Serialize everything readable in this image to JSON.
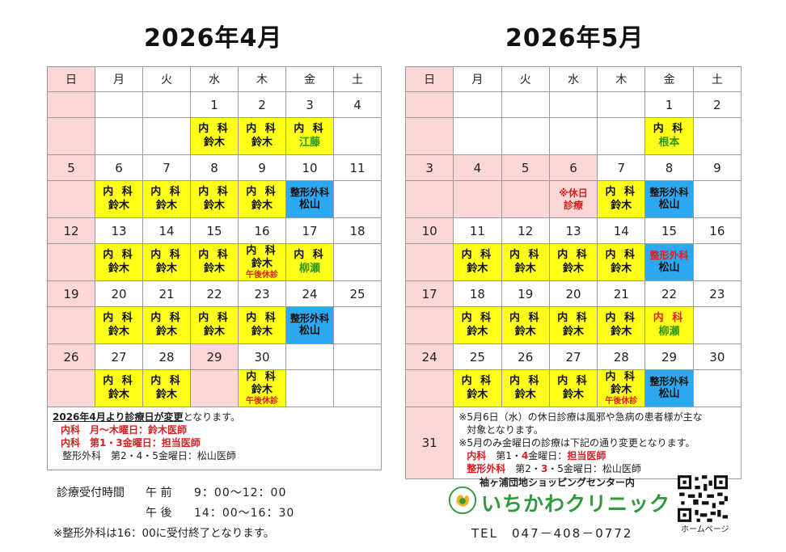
{
  "april": {
    "title": "2026年4月",
    "weekdays": [
      "日",
      "月",
      "火",
      "水",
      "木",
      "金",
      "土"
    ],
    "rows": [
      {
        "nums": [
          "",
          "",
          "",
          "1",
          "2",
          "3",
          "4"
        ],
        "notes": [
          {
            "type": "sun"
          },
          {
            "type": "empty"
          },
          {
            "type": "empty"
          },
          {
            "type": "yel",
            "l1": "内 科",
            "l2": "鈴木"
          },
          {
            "type": "yel",
            "l1": "内 科",
            "l2": "鈴木"
          },
          {
            "type": "yel",
            "l1": "内 科",
            "l2": "江藤",
            "green2": true
          },
          {
            "type": "empty"
          }
        ]
      },
      {
        "nums": [
          "5",
          "6",
          "7",
          "8",
          "9",
          "10",
          "11"
        ],
        "notes": [
          {
            "type": "sun"
          },
          {
            "type": "yel",
            "l1": "内 科",
            "l2": "鈴木"
          },
          {
            "type": "yel",
            "l1": "内 科",
            "l2": "鈴木"
          },
          {
            "type": "yel",
            "l1": "内 科",
            "l2": "鈴木"
          },
          {
            "type": "yel",
            "l1": "内 科",
            "l2": "鈴木"
          },
          {
            "type": "blu",
            "l1": "整形外科",
            "l2": "松山"
          },
          {
            "type": "empty"
          }
        ]
      },
      {
        "nums": [
          "12",
          "13",
          "14",
          "15",
          "16",
          "17",
          "18"
        ],
        "notes": [
          {
            "type": "sun"
          },
          {
            "type": "yel",
            "l1": "内 科",
            "l2": "鈴木"
          },
          {
            "type": "yel",
            "l1": "内 科",
            "l2": "鈴木"
          },
          {
            "type": "yel",
            "l1": "内 科",
            "l2": "鈴木"
          },
          {
            "type": "yel",
            "l1": "内 科",
            "l2": "鈴木",
            "l3": "午後休診"
          },
          {
            "type": "yel",
            "l1": "内 科",
            "l2": "柳瀬",
            "green2": true
          },
          {
            "type": "empty"
          }
        ]
      },
      {
        "nums": [
          "19",
          "20",
          "21",
          "22",
          "23",
          "24",
          "25"
        ],
        "notes": [
          {
            "type": "sun"
          },
          {
            "type": "yel",
            "l1": "内 科",
            "l2": "鈴木"
          },
          {
            "type": "yel",
            "l1": "内 科",
            "l2": "鈴木"
          },
          {
            "type": "yel",
            "l1": "内 科",
            "l2": "鈴木"
          },
          {
            "type": "yel",
            "l1": "内 科",
            "l2": "鈴木"
          },
          {
            "type": "blu",
            "l1": "整形外科",
            "l2": "松山"
          },
          {
            "type": "empty"
          }
        ]
      },
      {
        "nums": [
          "26",
          "27",
          "28",
          "29",
          "30",
          "",
          ""
        ],
        "holidayIdx": 3,
        "notes": [
          {
            "type": "sun"
          },
          {
            "type": "yel",
            "l1": "内 科",
            "l2": "鈴木"
          },
          {
            "type": "yel",
            "l1": "内 科",
            "l2": "鈴木"
          },
          {
            "type": "hol"
          },
          {
            "type": "yel",
            "l1": "内 科",
            "l2": "鈴木",
            "l3": "午後休診"
          },
          {
            "type": "empty"
          },
          {
            "type": "empty"
          }
        ]
      }
    ],
    "info": {
      "line1_u": "2026年4月より診療日が変更",
      "line1_rest": "となります。",
      "line2": "内科　月～木曜日：鈴木医師",
      "line3": "内科　第1・3金曜日：担当医師",
      "line4": "整形外科　第2・4・5金曜日：松山医師"
    }
  },
  "may": {
    "title": "2026年5月",
    "weekdays": [
      "日",
      "月",
      "火",
      "水",
      "木",
      "金",
      "土"
    ],
    "rows": [
      {
        "nums": [
          "",
          "",
          "",
          "",
          "",
          "1",
          "2"
        ],
        "notes": [
          {
            "type": "sun"
          },
          {
            "type": "empty"
          },
          {
            "type": "empty"
          },
          {
            "type": "empty"
          },
          {
            "type": "empty"
          },
          {
            "type": "yel",
            "l1": "内 科",
            "l2": "根本",
            "green2": true
          },
          {
            "type": "empty"
          }
        ]
      },
      {
        "nums": [
          "3",
          "4",
          "5",
          "6",
          "7",
          "8",
          "9"
        ],
        "allHoliday": [
          0,
          1,
          2,
          3
        ],
        "notes": [
          {
            "type": "sun"
          },
          {
            "type": "hol"
          },
          {
            "type": "hol"
          },
          {
            "type": "hol",
            "special": [
              "※休日",
              "診療"
            ]
          },
          {
            "type": "yel",
            "l1": "内 科",
            "l2": "鈴木"
          },
          {
            "type": "blu",
            "l1": "整形外科",
            "l2": "松山"
          },
          {
            "type": "empty"
          }
        ]
      },
      {
        "nums": [
          "10",
          "11",
          "12",
          "13",
          "14",
          "15",
          "16"
        ],
        "notes": [
          {
            "type": "sun"
          },
          {
            "type": "yel",
            "l1": "内 科",
            "l2": "鈴木"
          },
          {
            "type": "yel",
            "l1": "内 科",
            "l2": "鈴木"
          },
          {
            "type": "yel",
            "l1": "内 科",
            "l2": "鈴木"
          },
          {
            "type": "yel",
            "l1": "内 科",
            "l2": "鈴木"
          },
          {
            "type": "blu",
            "l1": "整形外科",
            "l2": "松山",
            "red1": true
          },
          {
            "type": "empty"
          }
        ]
      },
      {
        "nums": [
          "17",
          "18",
          "19",
          "20",
          "21",
          "22",
          "23"
        ],
        "notes": [
          {
            "type": "sun"
          },
          {
            "type": "yel",
            "l1": "内 科",
            "l2": "鈴木"
          },
          {
            "type": "yel",
            "l1": "内 科",
            "l2": "鈴木"
          },
          {
            "type": "yel",
            "l1": "内 科",
            "l2": "鈴木"
          },
          {
            "type": "yel",
            "l1": "内 科",
            "l2": "鈴木"
          },
          {
            "type": "yel",
            "l1": "内 科",
            "l2": "柳瀬",
            "red1": true,
            "green2": true
          },
          {
            "type": "empty"
          }
        ]
      },
      {
        "nums": [
          "24",
          "25",
          "26",
          "27",
          "28",
          "29",
          "30"
        ],
        "notes": [
          {
            "type": "sun"
          },
          {
            "type": "yel",
            "l1": "内 科",
            "l2": "鈴木"
          },
          {
            "type": "yel",
            "l1": "内 科",
            "l2": "鈴木"
          },
          {
            "type": "yel",
            "l1": "内 科",
            "l2": "鈴木"
          },
          {
            "type": "yel",
            "l1": "内 科",
            "l2": "鈴木",
            "l3": "午後休診"
          },
          {
            "type": "blu",
            "l1": "整形外科",
            "l2": "松山"
          },
          {
            "type": "empty"
          }
        ]
      }
    ],
    "last_day": "31",
    "info": {
      "line1": "※5月6日（水）の休日診療は風邪や急病の患者様が主な",
      "line2": "対象となります。",
      "line3": "※5月のみ金曜日の診療は下記の通り変更となります。",
      "line4_red": "内科",
      "line4_rest": "　第1・",
      "line4_num": "4",
      "line4_end": "金曜日：",
      "line4_doc": "担当医師",
      "line5_red": "整形外科",
      "line5_rest": "　第2・",
      "line5_num": "3",
      "line5_end": "・5金曜日：松山医師"
    }
  },
  "footer": {
    "hours_label": "診療受付時間",
    "am_label": "午 前",
    "am_time": "9：00～12：00",
    "pm_label": "午 後",
    "pm_time": "14：00～16：30",
    "note": "※整形外科は16：00に受付終了となります。",
    "clinic_sub": "袖ヶ浦団地ショッピングセンター内",
    "clinic_name": "いちかわクリニック",
    "tel": "TEL　047－408－0772",
    "qr_label": "ホームページ"
  },
  "colors": {
    "sunday_bg": "#fbd7d8",
    "internal_bg": "#ffff1a",
    "ortho_bg": "#2ba8f0",
    "accent_red": "#e0201f",
    "accent_green": "#2a9a1e",
    "clinic_green": "#2f9a3a"
  }
}
